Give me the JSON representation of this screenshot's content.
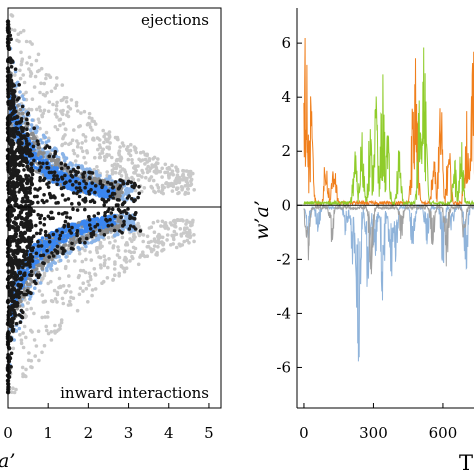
{
  "chart_data": [
    {
      "type": "scatter",
      "annotations": {
        "top": "ejections",
        "bottom": "inward interactions"
      },
      "xlabel_fragment": "a’",
      "xlim": [
        0,
        5.3
      ],
      "ylim": [
        -1,
        1
      ],
      "x_ticks": [
        "0",
        "1",
        "2",
        "3",
        "4",
        "5"
      ],
      "x_tick_values": [
        0,
        1,
        2,
        3,
        4,
        5
      ],
      "series": [
        {
          "color": "#c9c9c9",
          "reach_x": 4.6
        },
        {
          "color": "#8ab4e8",
          "reach_x": 3.1
        },
        {
          "color": "#8c8c8c",
          "reach_x": 2.8
        },
        {
          "color": "#3a86f0",
          "reach_x": 2.6
        },
        {
          "color": "#1a1a1a",
          "reach_x": 3.3
        }
      ],
      "grid": false
    },
    {
      "type": "line",
      "ylabel": "w’a’",
      "xlabel_fragment": "T",
      "xlim": [
        -30,
        760
      ],
      "ylim": [
        -7.5,
        7.3
      ],
      "x_ticks": [
        "0",
        "300",
        "600"
      ],
      "x_tick_values": [
        0,
        300,
        600
      ],
      "y_ticks": [
        "6",
        "4",
        "2",
        "0",
        "-2",
        "-4",
        "-6"
      ],
      "y_tick_values": [
        6,
        4,
        2,
        0,
        -2,
        -4,
        -6
      ],
      "series": [
        {
          "color": "#f07f1c",
          "bursts": [
            [
              8,
              6.7
            ],
            [
              30,
              4.1
            ],
            [
              95,
              2.0
            ],
            [
              130,
              2.3
            ],
            [
              470,
              4.0
            ],
            [
              483,
              6.2
            ],
            [
              560,
              2.0
            ],
            [
              590,
              4.2
            ],
            [
              625,
              2.6
            ],
            [
              700,
              4.2
            ],
            [
              730,
              6.7
            ]
          ]
        },
        {
          "color": "#8fcc2a",
          "bursts": [
            [
              220,
              2.2
            ],
            [
              250,
              2.9
            ],
            [
              285,
              3.1
            ],
            [
              310,
              4.9
            ],
            [
              340,
              5.0
            ],
            [
              360,
              3.0
            ],
            [
              410,
              2.2
            ],
            [
              500,
              4.4
            ],
            [
              520,
              6.5
            ],
            [
              650,
              1.8
            ],
            [
              680,
              2.4
            ]
          ]
        },
        {
          "color": "#8fb3da",
          "bursts": [
            [
              20,
              -1.4
            ],
            [
              60,
              -1.2
            ],
            [
              180,
              -1.3
            ],
            [
              210,
              -2.8
            ],
            [
              235,
              -6.7
            ],
            [
              275,
              -3.5
            ],
            [
              305,
              -2.4
            ],
            [
              340,
              -3.7
            ],
            [
              375,
              -3.0
            ],
            [
              395,
              -2.3
            ],
            [
              470,
              -2.1
            ],
            [
              530,
              -2.0
            ],
            [
              600,
              -2.3
            ],
            [
              640,
              -1.2
            ],
            [
              700,
              -2.5
            ]
          ]
        },
        {
          "color": "#a0a0a0",
          "bursts": [
            [
              15,
              -2.4
            ],
            [
              120,
              -1.5
            ],
            [
              290,
              -2.6
            ],
            [
              420,
              -1.3
            ],
            [
              555,
              -1.6
            ],
            [
              615,
              -2.3
            ],
            [
              690,
              -1.4
            ]
          ]
        }
      ],
      "grid": false
    }
  ]
}
